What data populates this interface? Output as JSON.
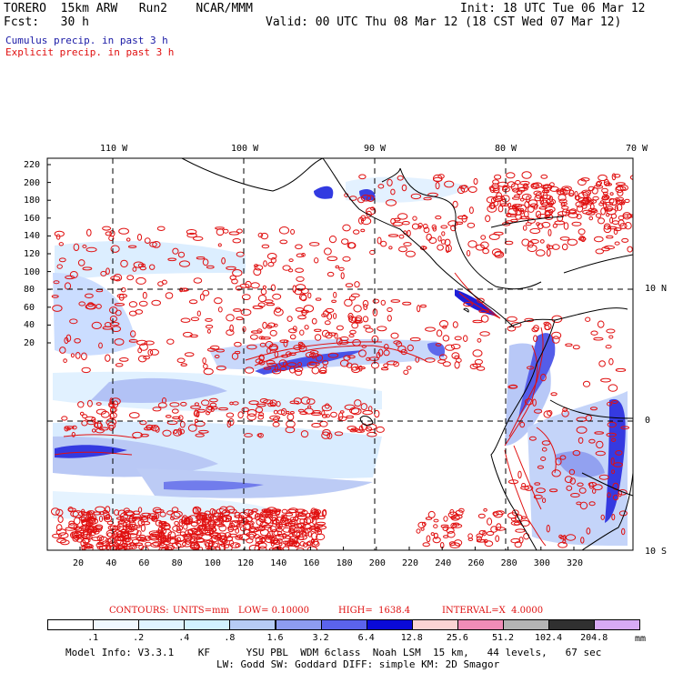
{
  "header": {
    "line1_left": "TORERO  15km ARW   Run2    NCAR/MMM",
    "line1_right": "Init: 18 UTC Tue 06 Mar 12",
    "line2_left": "Fcst:   30 h",
    "line2_right": "Valid: 00 UTC Thu 08 Mar 12 (18 CST Wed 07 Mar 12)",
    "line3": "Cumulus precip. in past 3 h",
    "line4": "Explicit precip. in past 3 h"
  },
  "map": {
    "top_labels": [
      "110 W",
      "100 W",
      "90 W",
      "80 W",
      "70 W"
    ],
    "right_labels": [
      "10 N",
      "0",
      "10 S"
    ],
    "y_ticks": [
      "220",
      "200",
      "180",
      "160",
      "140",
      "120",
      "100",
      "80",
      "60",
      "40",
      "20"
    ],
    "x_ticks": [
      "20",
      "40",
      "60",
      "80",
      "100",
      "120",
      "140",
      "160",
      "180",
      "200",
      "220",
      "240",
      "260",
      "280",
      "300",
      "320"
    ],
    "explicit_contour_color": "#e01010",
    "cumulus_shade_colors": [
      "#e6f4ff",
      "#b8c8f5",
      "#8a9cf0",
      "#4a5ae8",
      "#0a0ad8"
    ]
  },
  "contours_info": {
    "label": "CONTOURS:",
    "units": "UNITS=mm",
    "low": "LOW= 0.10000",
    "high": "HIGH=  1638.4",
    "interval": "INTERVAL=X  4.0000"
  },
  "colorbar": {
    "labels": [
      ".1",
      ".2",
      ".4",
      ".8",
      "1.6",
      "3.2",
      "6.4",
      "12.8",
      "25.6",
      "51.2",
      "102.4",
      "204.8"
    ],
    "unit": "mm",
    "colors": [
      "#ffffff",
      "#f0f8ff",
      "#e0f4ff",
      "#d2f2ff",
      "#b6cbf5",
      "#8d9cf0",
      "#5b63ec",
      "#0a0ad8",
      "#fbd3d3",
      "#f08cb7",
      "#b4b4b4",
      "#303030",
      "#d8aaf5"
    ]
  },
  "footer": {
    "line1": "Model Info: V3.3.1    KF      YSU PBL  WDM 6class  Noah LSM  15 km,   44 levels,   67 sec",
    "line2": "LW: Godd SW: Goddard DIFF: simple KM: 2D Smagor"
  }
}
